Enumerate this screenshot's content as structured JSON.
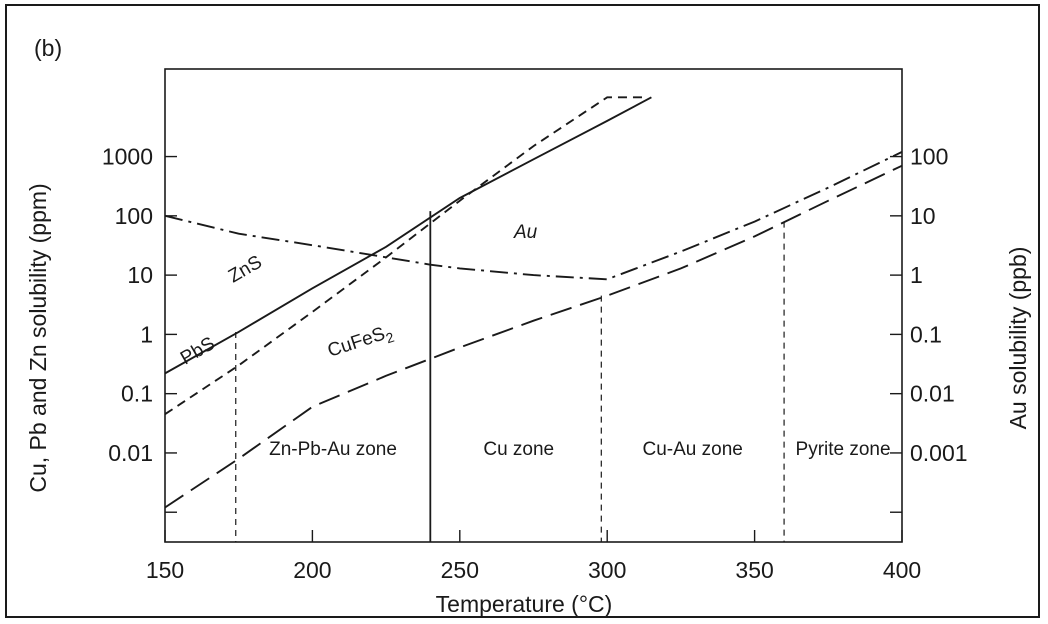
{
  "chart_data": {
    "type": "line",
    "panel_label": "(b)",
    "xlabel": "Temperature (°C)",
    "ylabel_left": "Cu, Pb and Zn solubility (ppm)",
    "ylabel_right": "Au solubility (ppb)",
    "xlim": [
      150,
      400
    ],
    "ylim_left": [
      0.0001,
      30000
    ],
    "y_scale": "log",
    "x_ticks": [
      150,
      200,
      250,
      300,
      350,
      400
    ],
    "y_ticks_left": [
      {
        "value": 1000,
        "label": "1000"
      },
      {
        "value": 100,
        "label": "100"
      },
      {
        "value": 10,
        "label": "10"
      },
      {
        "value": 1,
        "label": "1"
      },
      {
        "value": 0.1,
        "label": "0.1"
      },
      {
        "value": 0.01,
        "label": "0.01"
      },
      {
        "value": 0.001,
        "label": ""
      }
    ],
    "y_ticks_right": [
      {
        "value": 100,
        "label": "100"
      },
      {
        "value": 10,
        "label": "10"
      },
      {
        "value": 1,
        "label": "1"
      },
      {
        "value": 0.1,
        "label": "0.1"
      },
      {
        "value": 0.01,
        "label": "0.01"
      },
      {
        "value": 0.001,
        "label": "0.001"
      },
      {
        "value": 0.0001,
        "label": ""
      }
    ],
    "series": [
      {
        "name": "ZnS",
        "axis": "left",
        "style": "solid",
        "x": [
          150,
          175,
          200,
          225,
          250,
          275,
          300,
          315
        ],
        "y": [
          0.22,
          1.1,
          6,
          30,
          200,
          900,
          4000,
          10000
        ]
      },
      {
        "name": "PbS",
        "axis": "left",
        "style": "dashed",
        "x": [
          150,
          175,
          200,
          225,
          250,
          275,
          300,
          312
        ],
        "y": [
          0.045,
          0.3,
          2.4,
          20,
          180,
          1500,
          10000,
          10000
        ]
      },
      {
        "name": "CuFeS",
        "name_subscript": "2",
        "axis": "left",
        "style": "longdash",
        "x": [
          150,
          175,
          200,
          225,
          250,
          275,
          300,
          325,
          350,
          375,
          400
        ],
        "y": [
          0.0012,
          0.008,
          0.06,
          0.2,
          0.6,
          1.7,
          4.5,
          13,
          45,
          180,
          700
        ]
      },
      {
        "name": "Au",
        "axis": "right",
        "style": "dashdot",
        "x": [
          150,
          175,
          200,
          225,
          240,
          250,
          275,
          300,
          325,
          350,
          375,
          400
        ],
        "y": [
          10,
          5,
          3.2,
          2,
          1.5,
          1.3,
          1,
          0.85,
          2.5,
          8,
          30,
          120
        ]
      }
    ],
    "boundaries": [
      {
        "x": 174,
        "style": "dashed"
      },
      {
        "x": 240,
        "style": "solid"
      },
      {
        "x": 298,
        "style": "dashed"
      },
      {
        "x": 360,
        "style": "dashed"
      }
    ],
    "zones": [
      {
        "label": "Zn-Pb-Au zone",
        "x": 207
      },
      {
        "label": "Cu zone",
        "x": 270
      },
      {
        "label": "Cu-Au zone",
        "x": 329
      },
      {
        "label": "Pyrite zone",
        "x": 380
      }
    ]
  }
}
